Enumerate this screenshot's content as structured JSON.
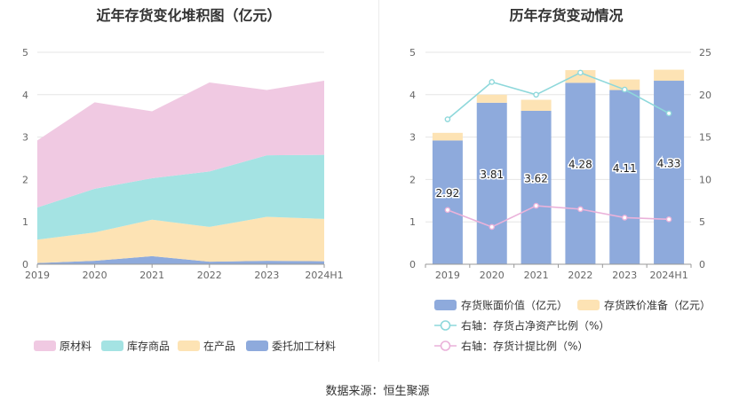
{
  "titles": {
    "left": "近年存货变化堆积图（亿元）",
    "right": "历年存货变动情况"
  },
  "source": "数据来源：恒生聚源",
  "chart_data": [
    {
      "type": "area",
      "stacked": true,
      "title": "近年存货变化堆积图（亿元）",
      "x": [
        "2019",
        "2020",
        "2021",
        "2022",
        "2023",
        "2024H1"
      ],
      "ylim": [
        0,
        5
      ],
      "yticks": [
        "0",
        "1",
        "2",
        "3",
        "4",
        "5"
      ],
      "grid": true,
      "legend_position": "bottom",
      "series": [
        {
          "name": "委托加工材料",
          "color": "#8eaadc",
          "values": [
            0.03,
            0.08,
            0.19,
            0.06,
            0.08,
            0.07
          ]
        },
        {
          "name": "在产品",
          "color": "#fde3b4",
          "values": [
            0.55,
            0.67,
            0.86,
            0.82,
            1.04,
            1.0
          ]
        },
        {
          "name": "库存商品",
          "color": "#a4e3e3",
          "values": [
            0.76,
            1.03,
            0.98,
            1.31,
            1.45,
            1.51
          ]
        },
        {
          "name": "原材料",
          "color": "#f0c9e2",
          "values": [
            1.58,
            2.04,
            1.58,
            2.1,
            1.54,
            1.75
          ]
        }
      ]
    },
    {
      "type": "bar",
      "title": "历年存货变动情况",
      "x": [
        "2019",
        "2020",
        "2021",
        "2022",
        "2023",
        "2024H1"
      ],
      "ylim": [
        0,
        5
      ],
      "yticks": [
        "0",
        "1",
        "2",
        "3",
        "4",
        "5"
      ],
      "y2lim": [
        0,
        25
      ],
      "y2ticks": [
        "0",
        "5",
        "10",
        "15",
        "20",
        "25"
      ],
      "grid": true,
      "legend_position": "bottom",
      "bars": [
        {
          "name": "存货账面价值（亿元）",
          "color": "#8eaadc",
          "values": [
            2.92,
            3.81,
            3.62,
            4.28,
            4.11,
            4.33
          ],
          "labels": [
            "2.92",
            "3.81",
            "3.62",
            "4.28",
            "4.11",
            "4.33"
          ]
        },
        {
          "name": "存货跌价准备（亿元）",
          "color": "#fde3b4",
          "values": [
            0.18,
            0.19,
            0.26,
            0.3,
            0.25,
            0.26
          ]
        }
      ],
      "lines": [
        {
          "name": "右轴：存货占净资产比例（%）",
          "color": "#8ed8db",
          "axis": "right",
          "values": [
            17.1,
            21.5,
            20.0,
            22.6,
            20.6,
            17.8
          ]
        },
        {
          "name": "右轴：存货计提比例（%）",
          "color": "#eab2da",
          "axis": "right",
          "values": [
            6.4,
            4.4,
            6.9,
            6.5,
            5.5,
            5.3
          ]
        }
      ]
    }
  ]
}
